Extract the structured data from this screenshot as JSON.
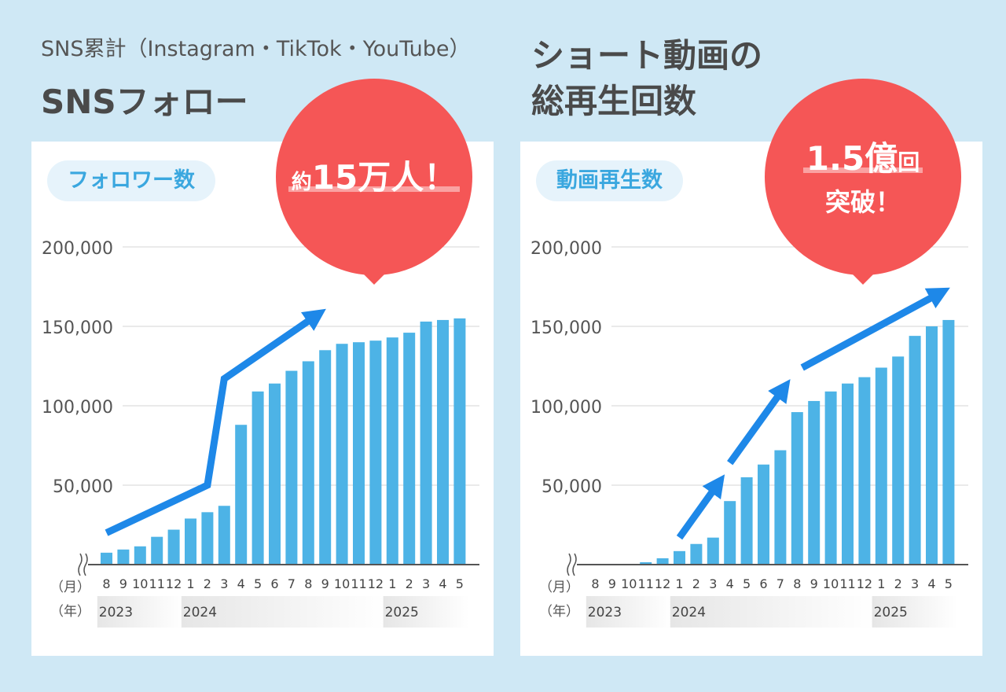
{
  "left": {
    "subtitle": "SNS累計（Instagram・TikTok・YouTube）",
    "title": "SNSフォロー",
    "pill": "フォロワー数",
    "callout": {
      "prefix": "約",
      "main": "15万人！"
    }
  },
  "right": {
    "title_line1": "ショート動画の",
    "title_line2": "総再生回数",
    "pill": "動画再生数",
    "callout": {
      "main": "1.5億",
      "suffix": "回",
      "line2": "突破！"
    }
  },
  "axis": {
    "month_unit": "（月）",
    "year_unit": "（年）",
    "y_ticks": [
      "200,000",
      "150,000",
      "100,000",
      "50,000"
    ],
    "y_tick_values": [
      200000,
      150000,
      100000,
      50000
    ],
    "months": [
      "8",
      "9",
      "10",
      "11",
      "12",
      "1",
      "2",
      "3",
      "4",
      "5",
      "6",
      "7",
      "8",
      "9",
      "10",
      "11",
      "12",
      "1",
      "2",
      "3",
      "4",
      "5"
    ],
    "years": [
      {
        "label": "2023",
        "start_index": 0,
        "end_index": 4
      },
      {
        "label": "2024",
        "start_index": 5,
        "end_index": 16
      },
      {
        "label": "2025",
        "start_index": 17,
        "end_index": 21
      }
    ]
  },
  "colors": {
    "bar": "#4db3e6",
    "arrow": "#1e88e8",
    "bubble": "#f55656",
    "text": "#4a4a4a",
    "pill_text": "#3aa7df"
  },
  "chart_data": [
    {
      "type": "bar",
      "categories": [
        "2023-8",
        "2023-9",
        "2023-10",
        "2023-11",
        "2023-12",
        "2024-1",
        "2024-2",
        "2024-3",
        "2024-4",
        "2024-5",
        "2024-6",
        "2024-7",
        "2024-8",
        "2024-9",
        "2024-10",
        "2024-11",
        "2024-12",
        "2025-1",
        "2025-2",
        "2025-3",
        "2025-4",
        "2025-5"
      ],
      "values": [
        7500,
        9500,
        11500,
        17500,
        22000,
        29000,
        33000,
        37000,
        88000,
        109000,
        114000,
        122000,
        128000,
        135000,
        139000,
        140000,
        141000,
        143000,
        146000,
        153000,
        154000,
        155000
      ],
      "ylim": [
        0,
        200000
      ],
      "grid": true,
      "trend_arrow": [
        [
          0,
          20000
        ],
        [
          6,
          50000
        ],
        [
          7,
          117000
        ],
        [
          12.5,
          157000
        ]
      ]
    },
    {
      "type": "bar",
      "categories": [
        "2023-8",
        "2023-9",
        "2023-10",
        "2023-11",
        "2023-12",
        "2024-1",
        "2024-2",
        "2024-3",
        "2024-4",
        "2024-5",
        "2024-6",
        "2024-7",
        "2024-8",
        "2024-9",
        "2024-10",
        "2024-11",
        "2024-12",
        "2025-1",
        "2025-2",
        "2025-3",
        "2025-4",
        "2025-5"
      ],
      "values": [
        500,
        500,
        500,
        1500,
        4000,
        8500,
        13000,
        17000,
        40000,
        55000,
        63000,
        72000,
        96000,
        103000,
        109000,
        114000,
        118000,
        124000,
        131000,
        144000,
        150000,
        154000
      ],
      "ylim": [
        0,
        200000
      ],
      "grid": true,
      "trend_arrows": [
        [
          [
            5,
            17000
          ],
          [
            7.3,
            51000
          ]
        ],
        [
          [
            8,
            64000
          ],
          [
            11.2,
            111000
          ]
        ],
        [
          [
            12.3,
            124000
          ],
          [
            20.5,
            171000
          ]
        ]
      ]
    }
  ]
}
